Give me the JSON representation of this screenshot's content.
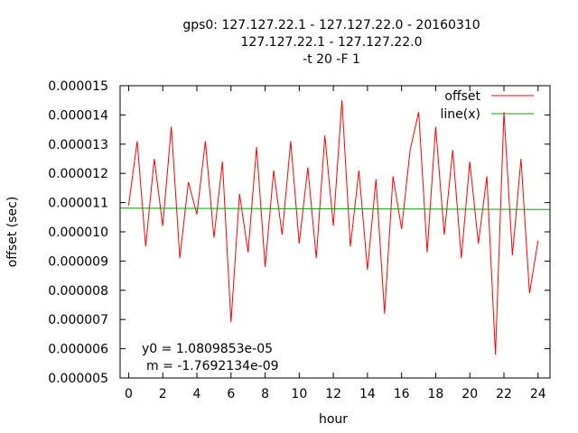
{
  "chart_data": {
    "type": "line",
    "title_lines": [
      "gps0: 127.127.22.1 - 127.127.22.0 - 20160310",
      "127.127.22.1 - 127.127.22.0",
      "-t 20 -F 1"
    ],
    "xlabel": "hour",
    "ylabel": "offset (sec)",
    "xlim": [
      -0.5,
      24.7
    ],
    "ylim": [
      5e-06,
      1.5e-05
    ],
    "x_ticks": [
      "0",
      "2",
      "4",
      "6",
      "8",
      "10",
      "12",
      "14",
      "16",
      "18",
      "20",
      "22",
      "24"
    ],
    "y_ticks": [
      "0.000005",
      "0.000006",
      "0.000007",
      "0.000008",
      "0.000009",
      "0.000010",
      "0.000011",
      "0.000012",
      "0.000013",
      "0.000014",
      "0.000015"
    ],
    "legend_position": "top-right",
    "grid": false,
    "annotations": [
      "y0 = 1.0809853e-05",
      "m = -1.7692134e-09"
    ],
    "series": [
      {
        "name": "offset",
        "color": "#ff0000",
        "x": [
          0,
          0.5,
          1,
          1.5,
          2,
          2.5,
          3,
          3.5,
          4,
          4.5,
          5,
          5.5,
          6,
          6.5,
          7,
          7.5,
          8,
          8.5,
          9,
          9.5,
          10,
          10.5,
          11,
          11.5,
          12,
          12.5,
          13,
          13.5,
          14,
          14.5,
          15,
          15.5,
          16,
          16.5,
          17,
          17.5,
          18,
          18.5,
          19,
          19.5,
          20,
          20.5,
          21,
          21.5,
          22,
          22.5,
          23,
          23.5,
          24
        ],
        "y": [
          1.09e-05,
          1.31e-05,
          9.5e-06,
          1.25e-05,
          1.02e-05,
          1.36e-05,
          9.1e-06,
          1.17e-05,
          1.06e-05,
          1.31e-05,
          9.8e-06,
          1.24e-05,
          6.9e-06,
          1.13e-05,
          9.3e-06,
          1.29e-05,
          8.8e-06,
          1.21e-05,
          9.9e-06,
          1.31e-05,
          9.6e-06,
          1.22e-05,
          9.1e-06,
          1.33e-05,
          1.02e-05,
          1.45e-05,
          9.5e-06,
          1.21e-05,
          8.7e-06,
          1.18e-05,
          7.2e-06,
          1.19e-05,
          1.01e-05,
          1.28e-05,
          1.41e-05,
          9.3e-06,
          1.36e-05,
          9.9e-06,
          1.28e-05,
          9.1e-06,
          1.24e-05,
          9.6e-06,
          1.19e-05,
          5.8e-06,
          1.41e-05,
          9.2e-06,
          1.25e-05,
          7.9e-06,
          9.7e-06
        ]
      },
      {
        "name": "line(x)",
        "color": "#00a000",
        "x": [
          -0.5,
          24.7
        ],
        "y": [
          1.08108e-05,
          1.07662e-05
        ]
      }
    ]
  }
}
